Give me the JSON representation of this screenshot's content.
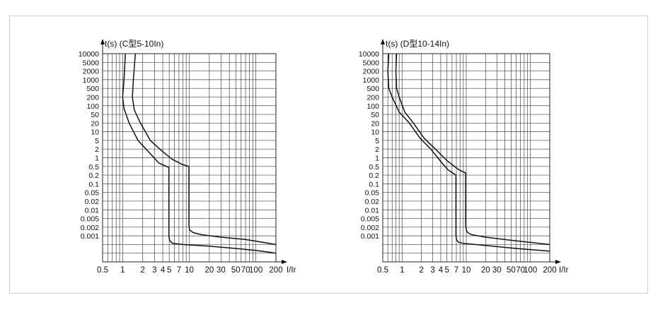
{
  "chart_data": [
    {
      "type": "line",
      "title": "t(s) (C型5-10In)",
      "xlabel": "I/Ir",
      "ylabel": "t(s)",
      "x_scale": "log",
      "y_scale": "log",
      "xlim": [
        0.5,
        200
      ],
      "ylim": [
        0.0001,
        10000
      ],
      "grid": true,
      "x_tick_labels": [
        "0.5",
        "1",
        "2",
        "3",
        "4",
        "5",
        "7",
        "10",
        "20",
        "30",
        "50",
        "70",
        "100",
        "200"
      ],
      "y_tick_labels": [
        "10000",
        "5000",
        "2000",
        "1000",
        "500",
        "200",
        "100",
        "50",
        "20",
        "10",
        "5",
        "2",
        "1",
        "0.5",
        "0.2",
        "0.1",
        "0.05",
        "0.02",
        "0.01",
        "0.005",
        "0.002",
        "0.001"
      ],
      "series": [
        {
          "x": [
            1.1,
            1.05,
            1.0,
            1.05,
            1.25,
            1.7,
            2.4,
            3.5,
            4.95,
            4.95,
            5.05,
            5.6,
            8,
            20,
            50,
            100,
            200
          ],
          "y": [
            10000,
            1000,
            200,
            80,
            20,
            5,
            1.7,
            0.65,
            0.45,
            0.001,
            0.0007,
            0.00055,
            0.0005,
            0.00042,
            0.00033,
            0.00027,
            0.0002
          ]
        },
        {
          "x": [
            1.55,
            1.45,
            1.4,
            1.5,
            1.85,
            2.6,
            3.8,
            5.5,
            7.7,
            9.9,
            9.9,
            10.1,
            11.5,
            15,
            30,
            70,
            200
          ],
          "y": [
            10000,
            1000,
            200,
            70,
            20,
            5,
            1.8,
            0.9,
            0.6,
            0.5,
            0.0025,
            0.0016,
            0.0013,
            0.0011,
            0.0009,
            0.00075,
            0.0005
          ]
        }
      ]
    },
    {
      "type": "line",
      "title": "t(s) (D型10-14In)",
      "xlabel": "I/Ir",
      "ylabel": "t(s)",
      "x_scale": "log",
      "y_scale": "log",
      "xlim": [
        0.5,
        200
      ],
      "ylim": [
        0.0001,
        10000
      ],
      "grid": true,
      "x_tick_labels": [
        "0.5",
        "1",
        "2",
        "3",
        "4",
        "5",
        "7",
        "10",
        "20",
        "30",
        "50",
        "70",
        "100",
        "200"
      ],
      "y_tick_labels": [
        "10000",
        "5000",
        "2000",
        "1000",
        "500",
        "200",
        "100",
        "50",
        "20",
        "10",
        "5",
        "2",
        "1",
        "0.5",
        "0.2",
        "0.1",
        "0.05",
        "0.02",
        "0.01",
        "0.005",
        "0.002",
        "0.001"
      ],
      "series": [
        {
          "x": [
            0.82,
            0.8,
            0.82,
            0.9,
            1.1,
            1.5,
            2.2,
            3.3,
            5,
            7.7,
            9.8,
            9.8,
            10.0,
            10.5,
            12,
            20,
            50,
            200
          ],
          "y": [
            10000,
            2000,
            500,
            200,
            60,
            20,
            6,
            2,
            0.8,
            0.35,
            0.25,
            0.0025,
            0.0016,
            0.0013,
            0.0011,
            0.0009,
            0.0007,
            0.0005
          ]
        },
        {
          "x": [
            0.62,
            0.6,
            0.62,
            0.7,
            0.9,
            1.3,
            1.9,
            2.8,
            3.9,
            5.2,
            6.9,
            6.9,
            7.1,
            7.6,
            9,
            20,
            60,
            200
          ],
          "y": [
            10000,
            2000,
            500,
            200,
            60,
            20,
            6,
            2,
            0.8,
            0.35,
            0.2,
            0.001,
            0.0007,
            0.0006,
            0.00055,
            0.00045,
            0.00033,
            0.00025
          ]
        }
      ]
    }
  ]
}
